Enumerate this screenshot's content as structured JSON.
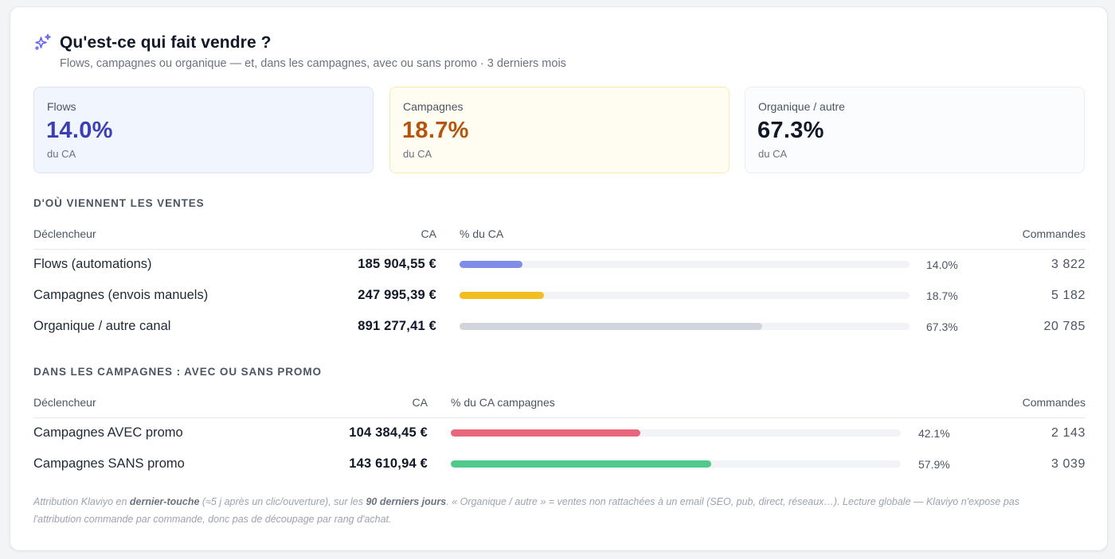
{
  "header": {
    "title": "Qu'est-ce qui fait vendre ?",
    "subtitle": "Flows, campagnes ou organique — et, dans les campagnes, avec ou sans promo · 3 derniers mois",
    "icon": "sparkles-icon"
  },
  "kpis": [
    {
      "label": "Flows",
      "value": "14.0%",
      "sub": "du CA",
      "color": "#3b3fb6"
    },
    {
      "label": "Campagnes",
      "value": "18.7%",
      "sub": "du CA",
      "color": "#b5540d"
    },
    {
      "label": "Organique / autre",
      "value": "67.3%",
      "sub": "du CA",
      "color": "#111827"
    }
  ],
  "sources": {
    "heading": "D'OÙ VIENNENT LES VENTES",
    "columns": {
      "trigger": "Déclencheur",
      "ca": "CA",
      "share": "% du CA",
      "orders": "Commandes"
    },
    "rows": [
      {
        "label": "Flows (automations)",
        "ca": "185 904,55 €",
        "pct_text": "14.0%",
        "pct": 14.0,
        "orders": "3 822",
        "color": "#7f8de8"
      },
      {
        "label": "Campagnes (envois manuels)",
        "ca": "247 995,39 €",
        "pct_text": "18.7%",
        "pct": 18.7,
        "orders": "5 182",
        "color": "#f2bd1e"
      },
      {
        "label": "Organique / autre canal",
        "ca": "891 277,41 €",
        "pct_text": "67.3%",
        "pct": 67.3,
        "orders": "20 785",
        "color": "#d1d5db"
      }
    ]
  },
  "campaigns": {
    "heading": "DANS LES CAMPAGNES : AVEC OU SANS PROMO",
    "columns": {
      "trigger": "Déclencheur",
      "ca": "CA",
      "share": "% du CA campagnes",
      "orders": "Commandes"
    },
    "rows": [
      {
        "label": "Campagnes AVEC promo",
        "ca": "104 384,45 €",
        "pct_text": "42.1%",
        "pct": 42.1,
        "orders": "2 143",
        "color": "#e9677a"
      },
      {
        "label": "Campagnes SANS promo",
        "ca": "143 610,94 €",
        "pct_text": "57.9%",
        "pct": 57.9,
        "orders": "3 039",
        "color": "#4fca8c"
      }
    ]
  },
  "footnote": {
    "p1": "Attribution Klaviyo en ",
    "b1": "dernier-touche",
    "p2": " (≈5 j après un clic/ouverture), sur les ",
    "b2": "90 derniers jours",
    "p3": ". « Organique / autre » = ventes non rattachées à un email (SEO, pub, direct, réseaux…). Lecture globale — Klaviyo n'expose pas l'attribution commande par commande, donc pas de découpage par rang d'achat."
  }
}
